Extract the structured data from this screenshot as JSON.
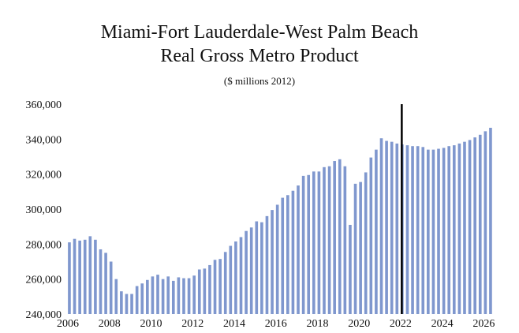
{
  "chart_data": {
    "type": "bar",
    "title_line1": "Miami-Fort Lauderdale-West Palm Beach",
    "title_line2": "Real Gross Metro Product",
    "subtitle": "($ millions 2012)",
    "xlabel": "",
    "ylabel": "",
    "ylim": [
      240000,
      360000
    ],
    "xlim": [
      2006,
      2026.25
    ],
    "yticks": [
      {
        "value": 240000,
        "label": "240,000"
      },
      {
        "value": 260000,
        "label": "260,000"
      },
      {
        "value": 280000,
        "label": "280,000"
      },
      {
        "value": 300000,
        "label": "300,000"
      },
      {
        "value": 320000,
        "label": "320,000"
      },
      {
        "value": 340000,
        "label": "340,000"
      },
      {
        "value": 360000,
        "label": "360,000"
      }
    ],
    "xticks": [
      {
        "value": 2006,
        "label": "2006"
      },
      {
        "value": 2008,
        "label": "2008"
      },
      {
        "value": 2010,
        "label": "2010"
      },
      {
        "value": 2012,
        "label": "2012"
      },
      {
        "value": 2014,
        "label": "2014"
      },
      {
        "value": 2016,
        "label": "2016"
      },
      {
        "value": 2018,
        "label": "2018"
      },
      {
        "value": 2020,
        "label": "2020"
      },
      {
        "value": 2022,
        "label": "2022"
      },
      {
        "value": 2024,
        "label": "2024"
      },
      {
        "value": 2026,
        "label": "2026"
      }
    ],
    "forecast_marker_x": 2022,
    "start": 2006,
    "frequency": "quarterly",
    "bar_color": "#7f97ce",
    "marker_color": "#000000",
    "series": [
      {
        "name": "Real Gross Metro Product",
        "values": [
          281000,
          283000,
          282000,
          282500,
          284500,
          282500,
          277000,
          275000,
          270000,
          260000,
          253000,
          251500,
          251500,
          256000,
          257500,
          259500,
          261500,
          262500,
          260000,
          261500,
          259000,
          261000,
          260500,
          260500,
          262000,
          265500,
          266000,
          268000,
          271000,
          271500,
          275500,
          279000,
          281500,
          284000,
          287500,
          289500,
          293000,
          292500,
          296000,
          299500,
          302500,
          306500,
          308000,
          310500,
          313500,
          319000,
          319500,
          321500,
          321500,
          324000,
          324500,
          327500,
          328500,
          324500,
          291000,
          314500,
          315500,
          321000,
          329500,
          334000,
          340500,
          339000,
          338500,
          337500,
          337000,
          336500,
          336000,
          336000,
          335500,
          334000,
          334000,
          334500,
          335000,
          336000,
          336500,
          337500,
          338500,
          339500,
          341000,
          342500,
          344500,
          346500
        ]
      }
    ]
  }
}
